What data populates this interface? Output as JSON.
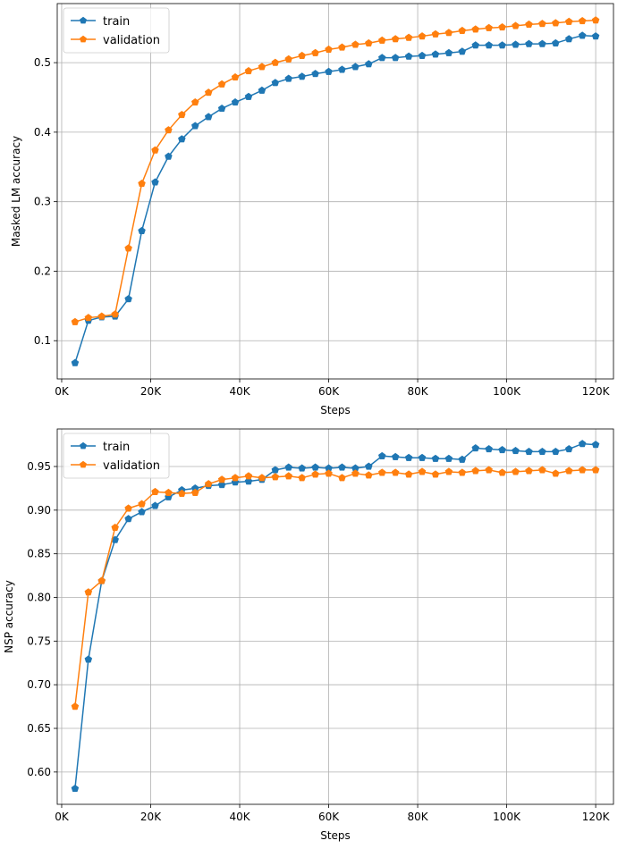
{
  "chart_data": [
    {
      "type": "line",
      "xlabel": "Steps",
      "ylabel": "Masked LM accuracy",
      "xlim": [
        -1000,
        124000
      ],
      "ylim": [
        0.045,
        0.585
      ],
      "xticks": [
        0,
        20000,
        40000,
        60000,
        80000,
        100000,
        120000
      ],
      "xtick_labels": [
        "0K",
        "20K",
        "40K",
        "60K",
        "80K",
        "100K",
        "120K"
      ],
      "yticks": [
        0.1,
        0.2,
        0.3,
        0.4,
        0.5
      ],
      "ytick_labels": [
        "0.1",
        "0.2",
        "0.3",
        "0.4",
        "0.5"
      ],
      "grid": true,
      "legend_placement": "top-left",
      "x": [
        3000,
        6000,
        9000,
        12000,
        15000,
        18000,
        21000,
        24000,
        27000,
        30000,
        33000,
        36000,
        39000,
        42000,
        45000,
        48000,
        51000,
        54000,
        57000,
        60000,
        63000,
        66000,
        69000,
        72000,
        75000,
        78000,
        81000,
        84000,
        87000,
        90000,
        93000,
        96000,
        99000,
        102000,
        105000,
        108000,
        111000,
        114000,
        117000,
        120000
      ],
      "series": [
        {
          "name": "train",
          "color": "#1f77b4",
          "values": [
            0.068,
            0.129,
            0.134,
            0.135,
            0.16,
            0.258,
            0.328,
            0.365,
            0.39,
            0.409,
            0.422,
            0.434,
            0.443,
            0.451,
            0.46,
            0.471,
            0.477,
            0.48,
            0.484,
            0.487,
            0.49,
            0.494,
            0.498,
            0.507,
            0.507,
            0.509,
            0.51,
            0.512,
            0.514,
            0.516,
            0.525,
            0.525,
            0.525,
            0.526,
            0.527,
            0.527,
            0.528,
            0.534,
            0.539,
            0.538
          ]
        },
        {
          "name": "validation",
          "color": "#ff7f0e",
          "values": [
            0.127,
            0.133,
            0.135,
            0.138,
            0.233,
            0.326,
            0.374,
            0.403,
            0.425,
            0.443,
            0.457,
            0.469,
            0.479,
            0.488,
            0.494,
            0.5,
            0.505,
            0.51,
            0.514,
            0.519,
            0.522,
            0.526,
            0.528,
            0.532,
            0.534,
            0.536,
            0.538,
            0.541,
            0.543,
            0.546,
            0.548,
            0.55,
            0.551,
            0.553,
            0.555,
            0.556,
            0.557,
            0.559,
            0.56,
            0.561
          ]
        }
      ]
    },
    {
      "type": "line",
      "xlabel": "Steps",
      "ylabel": "NSP accuracy",
      "xlim": [
        -1000,
        124000
      ],
      "ylim": [
        0.563,
        0.993
      ],
      "xticks": [
        0,
        20000,
        40000,
        60000,
        80000,
        100000,
        120000
      ],
      "xtick_labels": [
        "0K",
        "20K",
        "40K",
        "60K",
        "80K",
        "100K",
        "120K"
      ],
      "yticks": [
        0.6,
        0.65,
        0.7,
        0.75,
        0.8,
        0.85,
        0.9,
        0.95
      ],
      "ytick_labels": [
        "0.60",
        "0.65",
        "0.70",
        "0.75",
        "0.80",
        "0.85",
        "0.90",
        "0.95"
      ],
      "grid": true,
      "legend_placement": "top-left",
      "x": [
        3000,
        6000,
        9000,
        12000,
        15000,
        18000,
        21000,
        24000,
        27000,
        30000,
        33000,
        36000,
        39000,
        42000,
        45000,
        48000,
        51000,
        54000,
        57000,
        60000,
        63000,
        66000,
        69000,
        72000,
        75000,
        78000,
        81000,
        84000,
        87000,
        90000,
        93000,
        96000,
        99000,
        102000,
        105000,
        108000,
        111000,
        114000,
        117000,
        120000
      ],
      "series": [
        {
          "name": "train",
          "color": "#1f77b4",
          "values": [
            0.581,
            0.729,
            0.819,
            0.866,
            0.89,
            0.898,
            0.905,
            0.915,
            0.923,
            0.925,
            0.928,
            0.929,
            0.932,
            0.933,
            0.935,
            0.946,
            0.949,
            0.948,
            0.949,
            0.948,
            0.949,
            0.948,
            0.95,
            0.962,
            0.961,
            0.96,
            0.96,
            0.959,
            0.959,
            0.958,
            0.971,
            0.97,
            0.969,
            0.968,
            0.967,
            0.967,
            0.967,
            0.97,
            0.976,
            0.975
          ]
        },
        {
          "name": "validation",
          "color": "#ff7f0e",
          "values": [
            0.675,
            0.806,
            0.819,
            0.88,
            0.902,
            0.907,
            0.921,
            0.92,
            0.919,
            0.92,
            0.93,
            0.935,
            0.937,
            0.939,
            0.937,
            0.938,
            0.939,
            0.937,
            0.941,
            0.942,
            0.937,
            0.942,
            0.94,
            0.943,
            0.943,
            0.941,
            0.944,
            0.941,
            0.944,
            0.943,
            0.945,
            0.946,
            0.943,
            0.944,
            0.945,
            0.946,
            0.942,
            0.945,
            0.946,
            0.946
          ]
        }
      ]
    }
  ]
}
